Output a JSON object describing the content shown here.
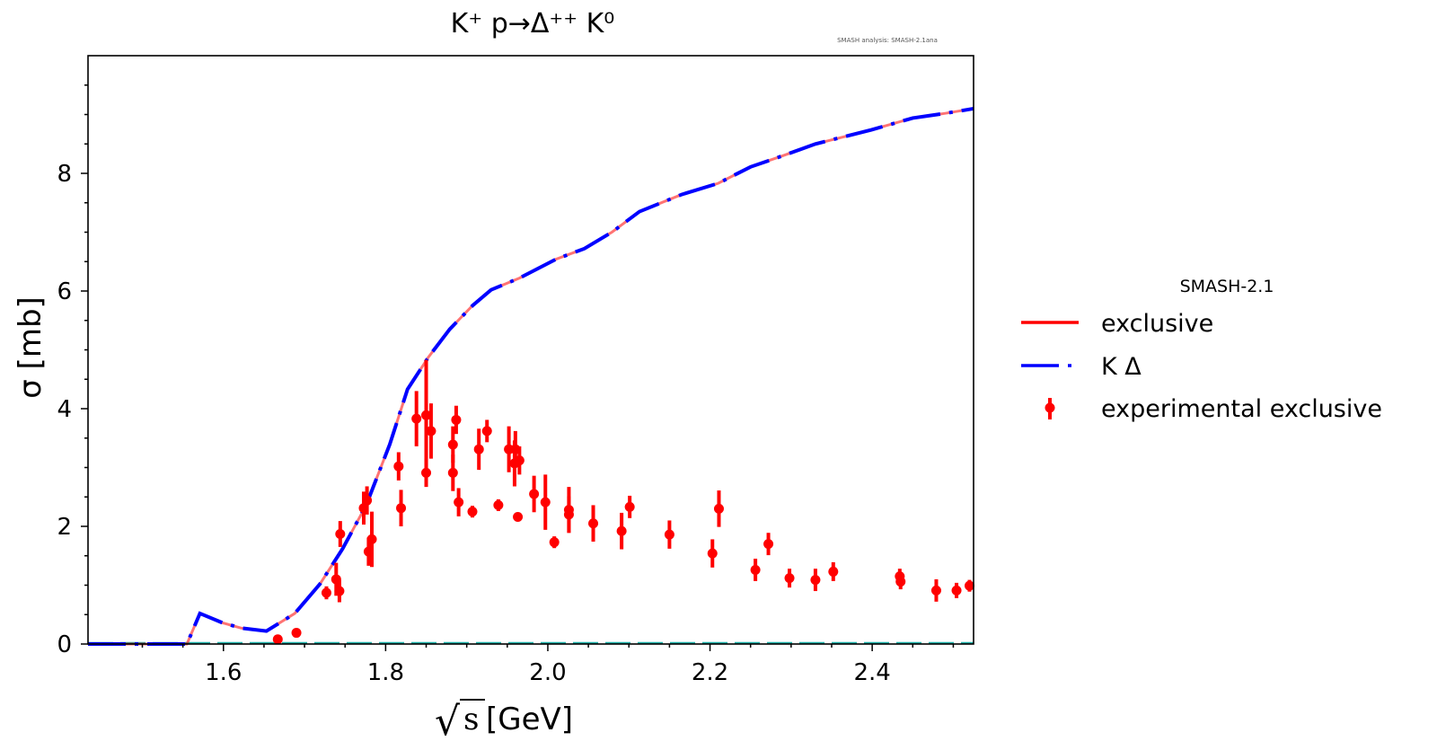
{
  "chart_data": {
    "type": "line",
    "title": "K⁺ p→Δ⁺⁺ K⁰",
    "subtitle": "SMASH analysis: SMASH-2.1ana",
    "xlabel": "√s [GeV]",
    "xlabel_root": "√",
    "xlabel_var": "s",
    "xlabel_unit": "[GeV]",
    "ylabel": "σ [mb]",
    "xlim": [
      1.433,
      2.525
    ],
    "ylim": [
      0,
      10
    ],
    "xticks": [
      1.6,
      1.8,
      2.0,
      2.2,
      2.4
    ],
    "xtick_labels": [
      "1.6",
      "1.8",
      "2.0",
      "2.2",
      "2.4"
    ],
    "yticks": [
      0,
      2,
      4,
      6,
      8
    ],
    "ytick_labels": [
      "0",
      "2",
      "4",
      "6",
      "8"
    ],
    "grid": false,
    "legend": {
      "placement": "right-outside",
      "title": "SMASH-2.1",
      "entries": [
        "exclusive",
        "K Δ",
        "experimental exclusive"
      ]
    },
    "colors": {
      "exclusive": "#ff0000",
      "kdelta": "#0000ff",
      "experimental": "#ff0000",
      "baseline": "#20b2aa"
    },
    "series": [
      {
        "name": "exclusive",
        "style": "solid",
        "x": [
          1.433,
          1.555,
          1.571,
          1.599,
          1.622,
          1.653,
          1.688,
          1.719,
          1.747,
          1.776,
          1.805,
          1.827,
          1.853,
          1.879,
          1.907,
          1.93,
          1.965,
          2.01,
          2.045,
          2.079,
          2.113,
          2.165,
          2.21,
          2.25,
          2.29,
          2.33,
          2.399,
          2.45,
          2.49,
          2.525
        ],
        "y": [
          0,
          0,
          0.52,
          0.36,
          0.27,
          0.22,
          0.52,
          1.02,
          1.62,
          2.36,
          3.39,
          4.33,
          4.88,
          5.35,
          5.75,
          6.02,
          6.22,
          6.54,
          6.72,
          7.0,
          7.35,
          7.64,
          7.83,
          8.11,
          8.3,
          8.5,
          8.74,
          8.94,
          9.02,
          9.1
        ]
      },
      {
        "name": "K Δ",
        "style": "dashed",
        "x": [
          1.433,
          1.555,
          1.571,
          1.599,
          1.622,
          1.653,
          1.688,
          1.719,
          1.747,
          1.776,
          1.805,
          1.827,
          1.853,
          1.879,
          1.907,
          1.93,
          1.965,
          2.01,
          2.045,
          2.079,
          2.113,
          2.165,
          2.21,
          2.25,
          2.29,
          2.33,
          2.399,
          2.45,
          2.49,
          2.525
        ],
        "y": [
          0,
          0,
          0.52,
          0.36,
          0.27,
          0.22,
          0.52,
          1.02,
          1.62,
          2.36,
          3.39,
          4.33,
          4.88,
          5.35,
          5.75,
          6.02,
          6.22,
          6.54,
          6.72,
          7.0,
          7.35,
          7.64,
          7.83,
          8.11,
          8.3,
          8.5,
          8.74,
          8.94,
          9.02,
          9.1
        ]
      },
      {
        "name": "experimental exclusive",
        "style": "errorbar",
        "x": [
          1.667,
          1.69,
          1.727,
          1.739,
          1.743,
          1.744,
          1.773,
          1.777,
          1.779,
          1.783,
          1.816,
          1.819,
          1.838,
          1.85,
          1.85,
          1.856,
          1.883,
          1.883,
          1.887,
          1.89,
          1.907,
          1.915,
          1.925,
          1.939,
          1.952,
          1.959,
          1.96,
          1.965,
          1.963,
          1.983,
          1.997,
          2.008,
          2.026,
          2.026,
          2.056,
          2.091,
          2.101,
          2.15,
          2.203,
          2.211,
          2.256,
          2.272,
          2.298,
          2.33,
          2.352,
          2.434,
          2.435,
          2.479,
          2.504,
          2.52
        ],
        "y": [
          0.08,
          0.19,
          0.87,
          1.1,
          0.9,
          1.87,
          2.31,
          2.44,
          1.57,
          1.78,
          3.02,
          2.31,
          3.83,
          3.89,
          2.91,
          3.62,
          3.39,
          2.91,
          3.81,
          2.41,
          2.25,
          3.31,
          3.62,
          2.36,
          3.31,
          3.07,
          3.31,
          3.12,
          2.16,
          2.55,
          2.41,
          1.73,
          2.28,
          2.2,
          2.05,
          1.92,
          2.33,
          1.86,
          1.54,
          2.3,
          1.26,
          1.7,
          1.12,
          1.09,
          1.23,
          1.15,
          1.06,
          0.91,
          0.91,
          0.99
        ],
        "yerr": [
          0,
          0,
          0.11,
          0.28,
          0.19,
          0.22,
          0.28,
          0.24,
          0.24,
          0.47,
          0.24,
          0.31,
          0.47,
          0.94,
          0.24,
          0.47,
          0.31,
          0.31,
          0.24,
          0.24,
          0.1,
          0.35,
          0.19,
          0.1,
          0.39,
          0.39,
          0.31,
          0.24,
          0,
          0.31,
          0.47,
          0.1,
          0.39,
          0.31,
          0.31,
          0.31,
          0.19,
          0.24,
          0.24,
          0.31,
          0.19,
          0.19,
          0.16,
          0.19,
          0.16,
          0.13,
          0.13,
          0.19,
          0.13,
          0.1
        ]
      }
    ]
  }
}
